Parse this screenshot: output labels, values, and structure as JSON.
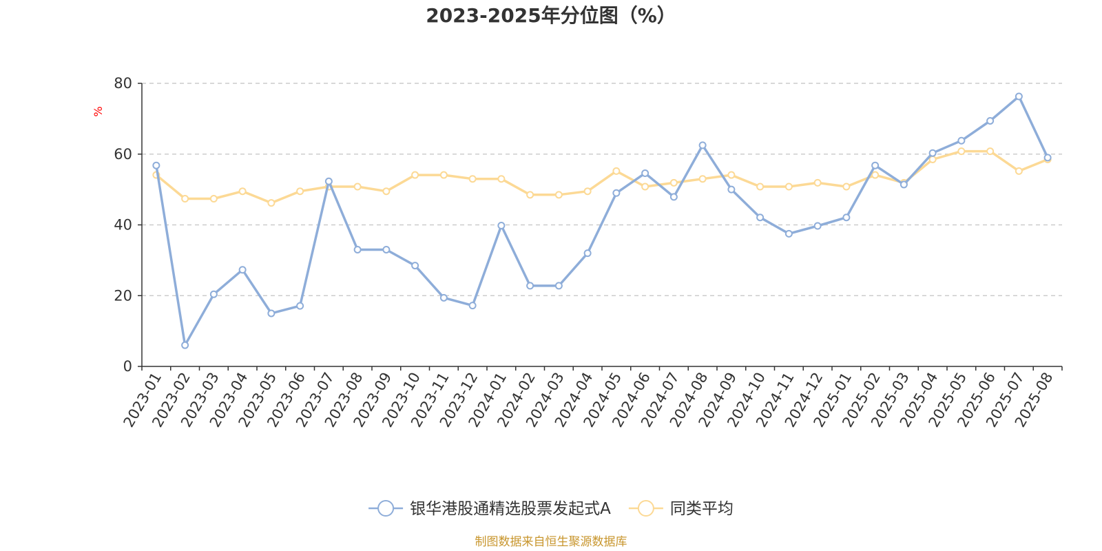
{
  "chart_data": {
    "type": "line",
    "title": "2023-2025年分位图（%）",
    "ylabel": "%",
    "ylim": [
      0,
      80
    ],
    "yticks": [
      0,
      20,
      40,
      60,
      80
    ],
    "grid": true,
    "legend_position": "bottom-center",
    "categories": [
      "2023-01",
      "2023-02",
      "2023-03",
      "2023-04",
      "2023-05",
      "2023-06",
      "2023-07",
      "2023-08",
      "2023-09",
      "2023-10",
      "2023-11",
      "2023-12",
      "2024-01",
      "2024-02",
      "2024-03",
      "2024-04",
      "2024-05",
      "2024-06",
      "2024-07",
      "2024-08",
      "2024-09",
      "2024-10",
      "2024-11",
      "2024-12",
      "2025-01",
      "2025-02",
      "2025-03",
      "2025-04",
      "2025-05",
      "2025-06",
      "2025-07",
      "2025-08"
    ],
    "series": [
      {
        "name": "银华港股通精选股票发起式A",
        "color": "#8eadd9",
        "values": [
          56.8,
          6.0,
          20.4,
          27.3,
          15.0,
          17.1,
          52.3,
          33.0,
          33.0,
          28.5,
          19.4,
          17.2,
          39.8,
          22.8,
          22.8,
          32.0,
          49.0,
          54.6,
          47.9,
          62.5,
          50.0,
          42.1,
          37.5,
          39.7,
          42.1,
          56.8,
          51.4,
          60.3,
          63.8,
          69.4,
          76.3,
          59.0
        ]
      },
      {
        "name": "同类平均",
        "color": "#fcd995",
        "values": [
          54.1,
          47.4,
          47.4,
          49.5,
          46.2,
          49.5,
          50.8,
          50.8,
          49.5,
          54.1,
          54.1,
          53.0,
          53.0,
          48.5,
          48.5,
          49.5,
          55.2,
          50.8,
          51.9,
          53.0,
          54.1,
          50.8,
          50.8,
          51.9,
          50.8,
          54.1,
          51.9,
          58.5,
          60.8,
          60.8,
          55.2,
          58.5
        ]
      }
    ]
  },
  "source_note": "制图数据来自恒生聚源数据库"
}
